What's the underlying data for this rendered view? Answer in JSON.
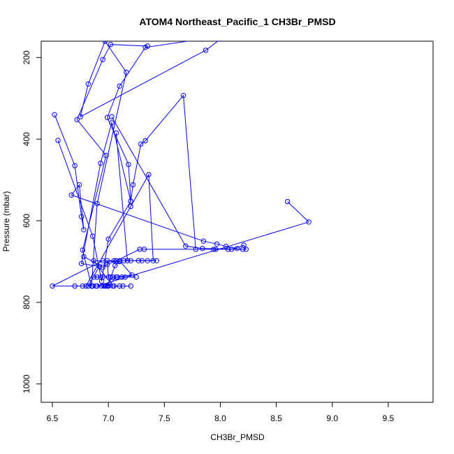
{
  "chart_data": {
    "type": "line",
    "title": "ATOM4 Northeast_Pacific_1 CH3Br_PMSD",
    "xlabel": "CH3Br_PMSD",
    "ylabel": "Pressure (mbar)",
    "xlim": [
      6.4,
      9.9
    ],
    "ylim": [
      1045,
      160
    ],
    "y_reversed": true,
    "x_ticks": [
      6.5,
      7.0,
      7.5,
      8.0,
      8.5,
      9.0,
      9.5
    ],
    "x_tick_labels": [
      "6.5",
      "7.0",
      "7.5",
      "8.0",
      "8.5",
      "9.0",
      "9.5"
    ],
    "y_ticks": [
      200,
      400,
      600,
      800,
      1000
    ],
    "y_tick_labels": [
      "200",
      "400",
      "600",
      "800",
      "1000"
    ],
    "grid": false,
    "series_color": "#0000ff",
    "series": [
      {
        "points": [
          [
            7.35,
            172
          ],
          [
            7.02,
            168
          ],
          [
            6.95,
            205
          ],
          [
            6.72,
            352
          ],
          [
            6.98,
            440
          ],
          [
            6.77,
            672
          ],
          [
            6.85,
            760
          ],
          [
            6.96,
            760
          ],
          [
            7.1,
            760
          ],
          [
            7.2,
            760
          ],
          [
            6.97,
            760
          ],
          [
            6.86,
            760
          ],
          [
            6.77,
            760
          ],
          [
            6.7,
            760
          ],
          [
            6.5,
            760
          ],
          [
            6.95,
            698
          ],
          [
            7.07,
            698
          ],
          [
            7.17,
            698
          ],
          [
            7.3,
            698
          ],
          [
            7.43,
            698
          ],
          [
            7.35,
            698
          ],
          [
            7.2,
            698
          ],
          [
            7.14,
            698
          ],
          [
            7.05,
            698
          ],
          [
            6.99,
            698
          ],
          [
            7.0,
            738
          ],
          [
            6.93,
            738
          ],
          [
            6.87,
            738
          ],
          [
            7.12,
            738
          ],
          [
            7.25,
            738
          ],
          [
            7.02,
            738
          ],
          [
            6.95,
            738
          ],
          [
            7.08,
            738
          ],
          [
            7.15,
            738
          ],
          [
            6.9,
            738
          ],
          [
            7.04,
            738
          ],
          [
            6.98,
            760
          ],
          [
            6.89,
            760
          ],
          [
            7.05,
            760
          ],
          [
            7.0,
            760
          ],
          [
            6.94,
            760
          ],
          [
            7.13,
            760
          ],
          [
            6.82,
            760
          ],
          [
            6.92,
            712
          ],
          [
            6.76,
            705
          ],
          [
            6.93,
            459
          ],
          [
            7.03,
            360
          ],
          [
            7.2,
            552
          ],
          [
            7.22,
            512
          ],
          [
            7.29,
            412
          ],
          [
            7.33,
            404
          ],
          [
            7.67,
            293
          ],
          [
            7.78,
            670
          ],
          [
            7.94,
            670
          ],
          [
            8.07,
            670
          ],
          [
            8.23,
            670
          ],
          [
            8.21,
            660
          ],
          [
            8.1,
            670
          ],
          [
            7.96,
            670
          ],
          [
            7.32,
            670
          ],
          [
            7.28,
            670
          ],
          [
            7.07,
            698
          ],
          [
            6.99,
            707
          ],
          [
            6.95,
            714
          ],
          [
            6.78,
            688
          ]
        ]
      },
      {
        "points": [
          [
            6.52,
            340
          ],
          [
            6.7,
            465
          ],
          [
            6.76,
            590
          ],
          [
            6.78,
            622
          ],
          [
            6.74,
            512
          ],
          [
            6.67,
            537
          ],
          [
            7.85,
            650
          ],
          [
            7.97,
            657
          ],
          [
            8.05,
            663
          ],
          [
            8.15,
            668
          ]
        ]
      },
      {
        "points": [
          [
            6.55,
            403
          ],
          [
            6.86,
            638
          ],
          [
            6.94,
            748
          ],
          [
            7.0,
            645
          ],
          [
            7.2,
            552
          ],
          [
            7.18,
            462
          ],
          [
            6.99,
            347
          ],
          [
            7.1,
            270
          ],
          [
            7.33,
            175
          ],
          [
            7.83,
            155
          ],
          [
            8.0,
            155
          ],
          [
            7.87,
            182
          ],
          [
            6.75,
            345
          ],
          [
            6.82,
            265
          ],
          [
            6.97,
            160
          ],
          [
            7.16,
            236
          ],
          [
            6.9,
            558
          ],
          [
            6.85,
            760
          ],
          [
            7.0,
            760
          ],
          [
            7.07,
            738
          ],
          [
            7.21,
            733
          ],
          [
            7.1,
            698
          ]
        ]
      },
      {
        "points": [
          [
            7.07,
            385
          ],
          [
            7.17,
            698
          ],
          [
            7.27,
            698
          ],
          [
            7.4,
            698
          ],
          [
            7.36,
            487
          ],
          [
            7.2,
            565
          ],
          [
            6.8,
            760
          ],
          [
            6.99,
            760
          ],
          [
            7.06,
            710
          ],
          [
            7.1,
            700
          ],
          [
            6.87,
            698
          ],
          [
            7.04,
            760
          ]
        ]
      },
      {
        "points": [
          [
            8.6,
            553
          ],
          [
            8.79,
            603
          ],
          [
            6.9,
            760
          ]
        ]
      },
      {
        "points": [
          [
            7.03,
            345
          ],
          [
            7.69,
            662
          ],
          [
            7.84,
            668
          ],
          [
            8.2,
            670
          ]
        ]
      }
    ]
  }
}
